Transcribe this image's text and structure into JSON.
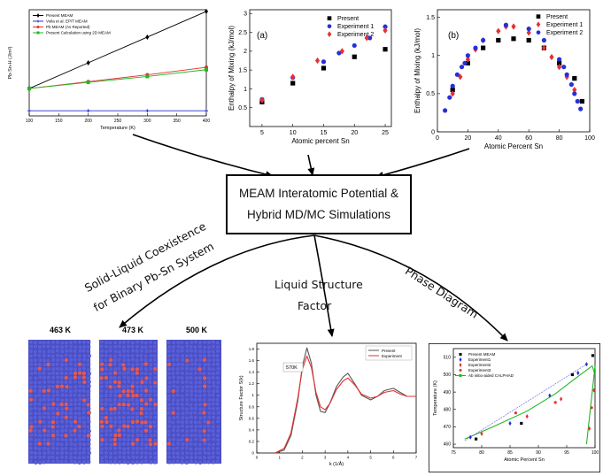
{
  "center_box": {
    "line1": "MEAM Interatomic Potential &",
    "line2": "Hybrid MD/MC Simulations"
  },
  "branch_labels": {
    "solid_liquid_1": "Solid-Liquid Coexistence",
    "solid_liquid_2": "for Binary Pb-Sn System",
    "liquid_structure_1": "Liquid Structure",
    "liquid_structure_2": "Factor",
    "phase_diagram": "Phase Diagram"
  },
  "snapshots": {
    "t1": "463 K",
    "t2": "473 K",
    "t3": "500 K"
  },
  "colors": {
    "atom_blue": "#5a5fd8",
    "atom_red": "#e05a5a",
    "series_red": "#e53030",
    "series_blue": "#2630d8",
    "series_green": "#22b622"
  },
  "chart_data": [
    {
      "type": "line",
      "xlabel": "Temperature (K)",
      "ylabel": "Pb-Sn-H (J/m²)",
      "x_ticks": [
        "100",
        "150",
        "200",
        "250",
        "300",
        "350",
        "400"
      ],
      "xlim": [
        100,
        400
      ],
      "legend": [
        "Present MEAM",
        "Voila et al. EP/T MEAM",
        "Pb MEAM (As Reported)",
        "Present Calculation using 2D MEAM"
      ],
      "series": [
        {
          "name": "Present MEAM",
          "x": [
            100,
            200,
            300,
            400
          ],
          "y": [
            -0.3,
            0.45,
            1.2,
            1.95
          ]
        },
        {
          "name": "Voila et al. EP/T MEAM",
          "x": [
            100,
            200,
            300,
            400
          ],
          "y": [
            -0.95,
            -0.95,
            -0.95,
            -0.95
          ]
        },
        {
          "name": "Pb MEAM (As Reported)",
          "x": [
            100,
            200,
            300,
            400
          ],
          "y": [
            -0.3,
            -0.1,
            0.1,
            0.32
          ]
        },
        {
          "name": "Present Calculation using 2D MEAM",
          "x": [
            100,
            200,
            300,
            400
          ],
          "y": [
            -0.3,
            -0.12,
            0.05,
            0.25
          ]
        }
      ]
    },
    {
      "type": "scatter",
      "panel_label": "(a)",
      "xlabel": "Atomic percent Sn",
      "ylabel": "Enthalpy of Mixing (kJ/mol)",
      "x_ticks": [
        "5",
        "10",
        "15",
        "20",
        "25"
      ],
      "y_ticks": [
        "0.5",
        "1",
        "1.5",
        "2",
        "2.5",
        "3"
      ],
      "xlim": [
        3,
        26
      ],
      "ylim": [
        0,
        3.1
      ],
      "legend": [
        "Present",
        "Experiment 1",
        "Experiment 2"
      ],
      "series": [
        {
          "name": "Present",
          "x": [
            5,
            10,
            15,
            20,
            25
          ],
          "y": [
            0.65,
            1.15,
            1.55,
            1.85,
            2.05
          ]
        },
        {
          "name": "Experiment 1",
          "x": [
            5,
            10,
            15,
            17.5,
            20,
            22.5,
            25
          ],
          "y": [
            0.72,
            1.3,
            1.72,
            1.95,
            2.15,
            2.35,
            2.65
          ]
        },
        {
          "name": "Experiment 2",
          "x": [
            5,
            10,
            14,
            18,
            22,
            25
          ],
          "y": [
            0.7,
            1.32,
            1.75,
            2.0,
            2.35,
            2.55
          ]
        }
      ]
    },
    {
      "type": "scatter",
      "panel_label": "(b)",
      "xlabel": "Atomic Percent Sn",
      "ylabel": "Enthalpy of Mixing (kJ/mol)",
      "x_ticks": [
        "0",
        "20",
        "40",
        "60",
        "80",
        "100"
      ],
      "y_ticks": [
        "0",
        "0.5",
        "1",
        "1.5"
      ],
      "xlim": [
        0,
        100
      ],
      "ylim": [
        0,
        1.6
      ],
      "legend": [
        "Present",
        "Experiment 1",
        "Experiment 2"
      ],
      "series": [
        {
          "name": "Present",
          "x": [
            10,
            20,
            30,
            40,
            50,
            60,
            70,
            80,
            90,
            95
          ],
          "y": [
            0.55,
            0.9,
            1.1,
            1.2,
            1.22,
            1.2,
            1.1,
            0.9,
            0.7,
            0.4
          ]
        },
        {
          "name": "Experiment 1",
          "x": [
            10,
            15,
            20,
            25,
            30,
            40,
            45,
            50,
            60,
            70,
            75,
            80,
            85,
            90
          ],
          "y": [
            0.5,
            0.72,
            0.95,
            1.08,
            1.2,
            1.32,
            1.38,
            1.38,
            1.3,
            1.1,
            0.98,
            0.85,
            0.72,
            0.55
          ]
        },
        {
          "name": "Experiment 2",
          "x": [
            5,
            8,
            10,
            13,
            16,
            18,
            20,
            25,
            30,
            45,
            60,
            70,
            80,
            83,
            85,
            88,
            90,
            92,
            94
          ],
          "y": [
            0.28,
            0.45,
            0.6,
            0.75,
            0.85,
            0.9,
            1.0,
            1.1,
            1.2,
            1.4,
            1.35,
            1.2,
            0.95,
            0.85,
            0.75,
            0.62,
            0.5,
            0.4,
            0.3
          ]
        }
      ]
    },
    {
      "type": "line",
      "annotation": "570K",
      "xlabel": "k (1/Å)",
      "ylabel": "Structure Factor S(k)",
      "x_ticks": [
        "0",
        "1",
        "2",
        "3",
        "4",
        "5",
        "6",
        "7"
      ],
      "y_ticks": [
        "0",
        "0.2",
        "0.4",
        "0.6",
        "0.8",
        "1",
        "1.2",
        "1.4",
        "1.6",
        "1.8"
      ],
      "xlim": [
        0,
        7
      ],
      "ylim": [
        0,
        1.9
      ],
      "legend": [
        "Present",
        "Experiment"
      ],
      "series": [
        {
          "name": "Present",
          "x": [
            0.8,
            1.2,
            1.5,
            1.8,
            2.0,
            2.2,
            2.4,
            2.6,
            2.8,
            3.0,
            3.2,
            3.5,
            3.8,
            4.0,
            4.3,
            4.6,
            5.0,
            5.3,
            5.6,
            6.0,
            6.3,
            6.6,
            7.0
          ],
          "y": [
            0,
            0.05,
            0.3,
            0.9,
            1.5,
            1.82,
            1.55,
            1.0,
            0.72,
            0.7,
            0.85,
            1.15,
            1.32,
            1.38,
            1.2,
            1.0,
            0.92,
            0.98,
            1.08,
            1.12,
            1.05,
            0.98,
            0.98
          ]
        },
        {
          "name": "Experiment",
          "x": [
            0.8,
            1.2,
            1.5,
            1.8,
            2.0,
            2.2,
            2.4,
            2.6,
            2.8,
            3.0,
            3.2,
            3.5,
            3.8,
            4.0,
            4.3,
            4.6,
            5.0,
            5.3,
            5.6,
            6.0,
            6.3,
            6.6,
            7.0
          ],
          "y": [
            0,
            0.08,
            0.35,
            0.95,
            1.45,
            1.68,
            1.48,
            1.05,
            0.8,
            0.75,
            0.85,
            1.1,
            1.25,
            1.3,
            1.18,
            1.02,
            0.95,
            0.98,
            1.05,
            1.08,
            1.02,
            0.98,
            0.98
          ]
        }
      ]
    },
    {
      "type": "line",
      "xlabel": "Atomic Percent Sn",
      "ylabel": "Temperature (K)",
      "x_ticks": [
        "75",
        "80",
        "85",
        "90",
        "95",
        "100"
      ],
      "y_ticks": [
        "460",
        "470",
        "480",
        "490",
        "500",
        "510"
      ],
      "xlim": [
        75,
        100
      ],
      "ylim": [
        458,
        515
      ],
      "legend": [
        "Present MEAM",
        "Experiment1",
        "Experiment2",
        "Experiment3",
        "Ab initio-aided CALPHAD"
      ],
      "series": [
        {
          "name": "Present MEAM",
          "x": [
            79,
            87,
            96,
            99.6
          ],
          "y": [
            463,
            472,
            500,
            511
          ]
        },
        {
          "name": "Experiment1",
          "x": [
            78,
            85,
            92,
            97,
            98.5
          ],
          "y": [
            464,
            472,
            488,
            501,
            506
          ]
        },
        {
          "name": "Experiment2",
          "x": [
            80,
            88,
            94,
            99,
            99.8
          ],
          "y": [
            466,
            476,
            486,
            469,
            491
          ]
        },
        {
          "name": "Experiment3",
          "x": [
            86,
            93,
            99.4
          ],
          "y": [
            478,
            484,
            481
          ]
        },
        {
          "name": "Ab initio-aided CALPHAD",
          "x": [
            77,
            82,
            88,
            93,
            97,
            99.5,
            100
          ],
          "y": [
            463,
            470,
            479,
            489,
            499,
            505,
            500
          ]
        }
      ]
    }
  ]
}
